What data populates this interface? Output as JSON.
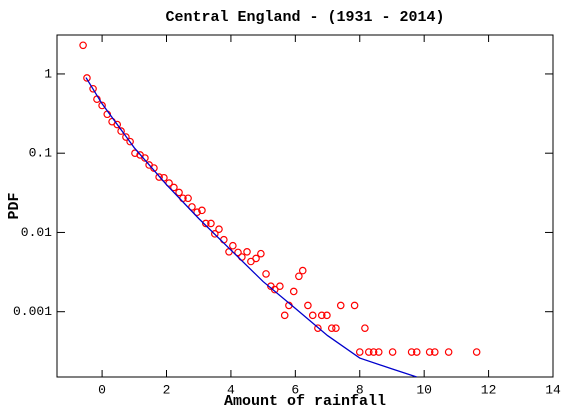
{
  "chart_data": {
    "type": "scatter",
    "title": "Central England - (1931 - 2014)",
    "xlabel": "Amount of rainfall",
    "ylabel": "PDF",
    "xlim": [
      -1.4,
      14
    ],
    "xticks": [
      0,
      2,
      4,
      6,
      8,
      10,
      12,
      14
    ],
    "ylim": [
      0.00015,
      3.1
    ],
    "yticks": [
      0.001,
      0.01,
      0.1,
      1
    ],
    "yscale": "log",
    "grid": false,
    "series": [
      {
        "type": "scatter",
        "color": "#ff0000",
        "x": [
          -0.59,
          -0.47,
          -0.28,
          -0.16,
          0,
          0.16,
          0.31,
          0.47,
          0.59,
          0.74,
          0.87,
          1.02,
          1.18,
          1.33,
          1.46,
          1.61,
          1.77,
          1.92,
          2.08,
          2.23,
          2.39,
          2.51,
          2.67,
          2.79,
          2.95,
          3.1,
          3.22,
          3.38,
          3.5,
          3.63,
          3.78,
          3.94,
          4.06,
          4.22,
          4.34,
          4.5,
          4.62,
          4.78,
          4.93,
          5.09,
          5.24,
          5.36,
          5.52,
          5.67,
          5.8,
          5.95,
          6.11,
          6.23,
          6.39,
          6.54,
          6.7,
          6.82,
          6.98,
          7.13,
          7.26,
          7.41,
          7.84,
          8.0,
          8.16,
          8.28,
          8.43,
          8.59,
          9.02,
          9.61,
          9.77,
          10.17,
          10.33,
          10.76,
          11.63
        ],
        "values": [
          2.3,
          0.89,
          0.65,
          0.48,
          0.4,
          0.31,
          0.25,
          0.23,
          0.19,
          0.16,
          0.14,
          0.1,
          0.095,
          0.087,
          0.071,
          0.065,
          0.05,
          0.049,
          0.042,
          0.037,
          0.032,
          0.027,
          0.027,
          0.021,
          0.018,
          0.019,
          0.013,
          0.013,
          0.0096,
          0.011,
          0.0081,
          0.0057,
          0.0068,
          0.0056,
          0.0049,
          0.0057,
          0.0043,
          0.0047,
          0.0054,
          0.003,
          0.0021,
          0.0019,
          0.0021,
          0.0009,
          0.0012,
          0.0018,
          0.0028,
          0.0033,
          0.0012,
          0.0009,
          0.00062,
          0.0009,
          0.0009,
          0.00062,
          0.00062,
          0.0012,
          0.0012,
          0.00031,
          0.00062,
          0.00031,
          0.00031,
          0.00031,
          0.00031,
          0.00031,
          0.00031,
          0.00031,
          0.00031,
          0.00031,
          0.00031
        ]
      },
      {
        "type": "line",
        "color": "#0000cc",
        "x": [
          -0.5,
          0,
          1,
          2,
          3,
          4,
          5,
          6,
          7,
          8,
          9,
          9.77
        ],
        "values": [
          0.9,
          0.42,
          0.117,
          0.04,
          0.015,
          0.006,
          0.0024,
          0.0011,
          0.0005,
          0.00026,
          0.00019,
          0.00015
        ]
      }
    ]
  }
}
